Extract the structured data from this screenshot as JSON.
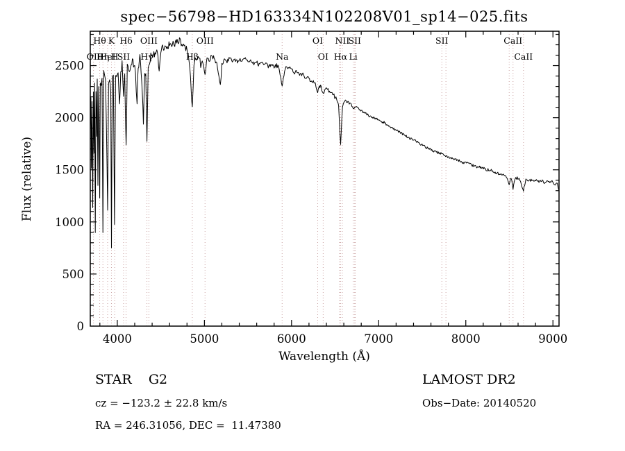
{
  "title": "spec−56798−HD163334N102208V01_sp14−025.fits",
  "annotations": {
    "class_line": "STAR    G2",
    "survey": "LAMOST DR2",
    "cz_line": "cz = −123.2 ± 22.8 km/s",
    "obs_date": "Obs−Date: 20140520",
    "ra_dec": "RA = 246.31056, DEC =  11.47380"
  },
  "chart_data": {
    "type": "line",
    "title": "spec−56798−HD163334N102208V01_sp14−025.fits",
    "xlabel": "Wavelength (Å)",
    "ylabel": "Flux (relative)",
    "xlim": [
      3690,
      9070
    ],
    "ylim": [
      0,
      2830
    ],
    "x_ticks": [
      4000,
      5000,
      6000,
      7000,
      8000,
      9000
    ],
    "y_ticks": [
      0,
      500,
      1000,
      1500,
      2000,
      2500
    ],
    "x_minor_step": 200,
    "y_minor_step": 100,
    "grid": false,
    "legend": "none",
    "line_color": "#000000",
    "feature_line_color": "#c9a0a0",
    "features": [
      {
        "label": "Hθ",
        "wavelength": 3798,
        "row": 1
      },
      {
        "label": "K",
        "wavelength": 3933,
        "row": 1
      },
      {
        "label": "Hδ",
        "wavelength": 4101,
        "row": 1
      },
      {
        "label": "OIII",
        "wavelength": 4363,
        "row": 1
      },
      {
        "label": "OIII",
        "wavelength": 5007,
        "row": 1
      },
      {
        "label": "OI",
        "wavelength": 6300,
        "row": 1
      },
      {
        "label": "NII",
        "wavelength": 6583,
        "row": 1
      },
      {
        "label": "SII",
        "wavelength": 6725,
        "row": 1
      },
      {
        "label": "SII",
        "wavelength": 7725,
        "row": 1
      },
      {
        "label": "CaII",
        "wavelength": 8542,
        "row": 1
      },
      {
        "label": "OII",
        "wavelength": 3727,
        "row": 2
      },
      {
        "label": "Hη",
        "wavelength": 3835,
        "row": 2
      },
      {
        "label": "HeI",
        "wavelength": 3889,
        "row": 2
      },
      {
        "label": "H",
        "wavelength": 3970,
        "row": 2
      },
      {
        "label": "SII",
        "wavelength": 4072,
        "row": 2
      },
      {
        "label": "Hγ",
        "wavelength": 4340,
        "row": 2
      },
      {
        "label": "Hβ",
        "wavelength": 4861,
        "row": 2
      },
      {
        "label": "Na",
        "wavelength": 5892,
        "row": 2
      },
      {
        "label": "OI",
        "wavelength": 6363,
        "row": 2
      },
      {
        "label": "Hα",
        "wavelength": 6563,
        "row": 2
      },
      {
        "label": "Li",
        "wavelength": 6708,
        "row": 2
      },
      {
        "label": "CaII",
        "wavelength": 8662,
        "row": 2
      }
    ],
    "extra_lines": [
      6548,
      6731,
      7772,
      8498
    ],
    "noise_segments": [
      {
        "max_wavelength": 4400,
        "amplitude": 60
      },
      {
        "max_wavelength": 5200,
        "amplitude": 30
      },
      {
        "max_wavelength": 6600,
        "amplitude": 20
      },
      {
        "max_wavelength": 9100,
        "amplitude": 13
      }
    ],
    "spectrum": [
      [
        3690,
        1900
      ],
      [
        3697,
        2150
      ],
      [
        3703,
        1500
      ],
      [
        3710,
        2200
      ],
      [
        3718,
        1100
      ],
      [
        3726,
        2250
      ],
      [
        3733,
        1700
      ],
      [
        3740,
        2280
      ],
      [
        3747,
        950
      ],
      [
        3755,
        2300
      ],
      [
        3762,
        1850
      ],
      [
        3770,
        2320
      ],
      [
        3778,
        1300
      ],
      [
        3786,
        2350
      ],
      [
        3792,
        2000
      ],
      [
        3798,
        1200
      ],
      [
        3805,
        2380
      ],
      [
        3815,
        2300
      ],
      [
        3825,
        2380
      ],
      [
        3835,
        850
      ],
      [
        3845,
        2400
      ],
      [
        3855,
        2350
      ],
      [
        3865,
        2400
      ],
      [
        3875,
        1900
      ],
      [
        3889,
        1150
      ],
      [
        3900,
        2380
      ],
      [
        3912,
        2420
      ],
      [
        3925,
        2300
      ],
      [
        3933,
        720
      ],
      [
        3942,
        2350
      ],
      [
        3955,
        2400
      ],
      [
        3968,
        950
      ],
      [
        3980,
        2420
      ],
      [
        3995,
        2450
      ],
      [
        4010,
        2480
      ],
      [
        4026,
        2100
      ],
      [
        4040,
        2480
      ],
      [
        4055,
        2500
      ],
      [
        4072,
        2150
      ],
      [
        4085,
        2480
      ],
      [
        4101,
        1680
      ],
      [
        4115,
        2480
      ],
      [
        4130,
        2520
      ],
      [
        4145,
        2480
      ],
      [
        4160,
        2540
      ],
      [
        4180,
        2500
      ],
      [
        4200,
        2550
      ],
      [
        4227,
        2150
      ],
      [
        4240,
        2530
      ],
      [
        4260,
        2560
      ],
      [
        4280,
        2350
      ],
      [
        4300,
        1950
      ],
      [
        4315,
        2480
      ],
      [
        4327,
        2420
      ],
      [
        4340,
        1720
      ],
      [
        4355,
        2520
      ],
      [
        4370,
        2560
      ],
      [
        4385,
        2600
      ],
      [
        4400,
        2570
      ],
      [
        4420,
        2620
      ],
      [
        4440,
        2590
      ],
      [
        4460,
        2640
      ],
      [
        4481,
        2450
      ],
      [
        4500,
        2640
      ],
      [
        4520,
        2680
      ],
      [
        4540,
        2650
      ],
      [
        4560,
        2700
      ],
      [
        4580,
        2660
      ],
      [
        4600,
        2720
      ],
      [
        4620,
        2680
      ],
      [
        4640,
        2730
      ],
      [
        4660,
        2700
      ],
      [
        4680,
        2740
      ],
      [
        4700,
        2720
      ],
      [
        4720,
        2750
      ],
      [
        4740,
        2700
      ],
      [
        4760,
        2730
      ],
      [
        4780,
        2650
      ],
      [
        4800,
        2680
      ],
      [
        4820,
        2550
      ],
      [
        4840,
        2400
      ],
      [
        4861,
        2080
      ],
      [
        4880,
        2500
      ],
      [
        4900,
        2580
      ],
      [
        4920,
        2540
      ],
      [
        4940,
        2600
      ],
      [
        4957,
        2480
      ],
      [
        4975,
        2560
      ],
      [
        5007,
        2420
      ],
      [
        5030,
        2580
      ],
      [
        5060,
        2550
      ],
      [
        5090,
        2600
      ],
      [
        5120,
        2570
      ],
      [
        5150,
        2480
      ],
      [
        5167,
        2380
      ],
      [
        5183,
        2300
      ],
      [
        5200,
        2520
      ],
      [
        5230,
        2560
      ],
      [
        5260,
        2540
      ],
      [
        5290,
        2570
      ],
      [
        5320,
        2540
      ],
      [
        5350,
        2560
      ],
      [
        5380,
        2530
      ],
      [
        5410,
        2560
      ],
      [
        5440,
        2540
      ],
      [
        5470,
        2560
      ],
      [
        5500,
        2530
      ],
      [
        5530,
        2550
      ],
      [
        5560,
        2520
      ],
      [
        5590,
        2540
      ],
      [
        5620,
        2510
      ],
      [
        5650,
        2530
      ],
      [
        5680,
        2500
      ],
      [
        5710,
        2520
      ],
      [
        5740,
        2490
      ],
      [
        5770,
        2510
      ],
      [
        5800,
        2480
      ],
      [
        5830,
        2500
      ],
      [
        5860,
        2470
      ],
      [
        5892,
        2290
      ],
      [
        5920,
        2460
      ],
      [
        5950,
        2490
      ],
      [
        5980,
        2470
      ],
      [
        6010,
        2460
      ],
      [
        6040,
        2430
      ],
      [
        6070,
        2440
      ],
      [
        6100,
        2410
      ],
      [
        6130,
        2420
      ],
      [
        6160,
        2390
      ],
      [
        6190,
        2380
      ],
      [
        6220,
        2360
      ],
      [
        6250,
        2340
      ],
      [
        6280,
        2310
      ],
      [
        6300,
        2240
      ],
      [
        6320,
        2300
      ],
      [
        6340,
        2290
      ],
      [
        6363,
        2230
      ],
      [
        6390,
        2280
      ],
      [
        6420,
        2260
      ],
      [
        6450,
        2240
      ],
      [
        6480,
        2220
      ],
      [
        6510,
        2190
      ],
      [
        6540,
        2130
      ],
      [
        6563,
        1740
      ],
      [
        6585,
        2120
      ],
      [
        6610,
        2170
      ],
      [
        6640,
        2150
      ],
      [
        6670,
        2140
      ],
      [
        6700,
        2110
      ],
      [
        6717,
        2080
      ],
      [
        6740,
        2110
      ],
      [
        6770,
        2090
      ],
      [
        6800,
        2070
      ],
      [
        6830,
        2050
      ],
      [
        6860,
        2040
      ],
      [
        6890,
        2020
      ],
      [
        6920,
        2010
      ],
      [
        6950,
        2000
      ],
      [
        6980,
        1990
      ],
      [
        7010,
        1980
      ],
      [
        7040,
        1960
      ],
      [
        7070,
        1950
      ],
      [
        7100,
        1930
      ],
      [
        7130,
        1920
      ],
      [
        7160,
        1900
      ],
      [
        7190,
        1890
      ],
      [
        7220,
        1870
      ],
      [
        7250,
        1860
      ],
      [
        7280,
        1840
      ],
      [
        7310,
        1830
      ],
      [
        7340,
        1810
      ],
      [
        7370,
        1800
      ],
      [
        7400,
        1790
      ],
      [
        7430,
        1770
      ],
      [
        7460,
        1760
      ],
      [
        7490,
        1740
      ],
      [
        7520,
        1730
      ],
      [
        7550,
        1710
      ],
      [
        7580,
        1700
      ],
      [
        7610,
        1690
      ],
      [
        7640,
        1680
      ],
      [
        7670,
        1670
      ],
      [
        7700,
        1660
      ],
      [
        7730,
        1650
      ],
      [
        7760,
        1640
      ],
      [
        7790,
        1630
      ],
      [
        7820,
        1620
      ],
      [
        7850,
        1610
      ],
      [
        7880,
        1600
      ],
      [
        7910,
        1590
      ],
      [
        7940,
        1580
      ],
      [
        7970,
        1570
      ],
      [
        8000,
        1570
      ],
      [
        8030,
        1560
      ],
      [
        8060,
        1550
      ],
      [
        8090,
        1540
      ],
      [
        8120,
        1530
      ],
      [
        8150,
        1530
      ],
      [
        8180,
        1520
      ],
      [
        8210,
        1510
      ],
      [
        8240,
        1500
      ],
      [
        8270,
        1500
      ],
      [
        8300,
        1490
      ],
      [
        8330,
        1480
      ],
      [
        8360,
        1470
      ],
      [
        8390,
        1460
      ],
      [
        8420,
        1450
      ],
      [
        8450,
        1440
      ],
      [
        8475,
        1430
      ],
      [
        8498,
        1350
      ],
      [
        8520,
        1430
      ],
      [
        8542,
        1310
      ],
      [
        8565,
        1420
      ],
      [
        8590,
        1420
      ],
      [
        8620,
        1410
      ],
      [
        8662,
        1300
      ],
      [
        8690,
        1410
      ],
      [
        8720,
        1400
      ],
      [
        8750,
        1400
      ],
      [
        8780,
        1390
      ],
      [
        8810,
        1400
      ],
      [
        8840,
        1390
      ],
      [
        8870,
        1400
      ],
      [
        8900,
        1370
      ],
      [
        8930,
        1390
      ],
      [
        8960,
        1380
      ],
      [
        8990,
        1390
      ],
      [
        9020,
        1360
      ],
      [
        9050,
        1380
      ],
      [
        9070,
        1300
      ]
    ]
  }
}
